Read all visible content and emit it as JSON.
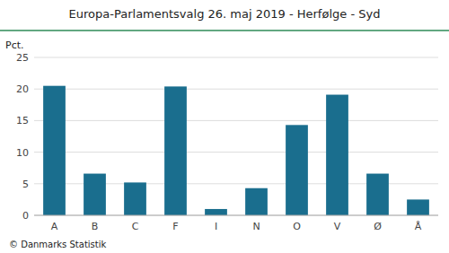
{
  "chart_data": {
    "type": "bar",
    "title": "Europa-Parlamentsvalg 26. maj 2019 - Herfølge - Syd",
    "categories": [
      "A",
      "B",
      "C",
      "F",
      "I",
      "N",
      "O",
      "V",
      "Ø",
      "Å"
    ],
    "values": [
      20.5,
      6.6,
      5.2,
      20.4,
      1.0,
      4.3,
      14.3,
      19.1,
      6.6,
      2.5
    ],
    "color": "#1a6e8e",
    "y_label": "Pct.",
    "annotations": [
      "© Danmarks Statistik"
    ],
    "ylim": [
      0,
      25
    ],
    "yticks": [
      0,
      5,
      10,
      15,
      20,
      25
    ],
    "grid": true
  }
}
